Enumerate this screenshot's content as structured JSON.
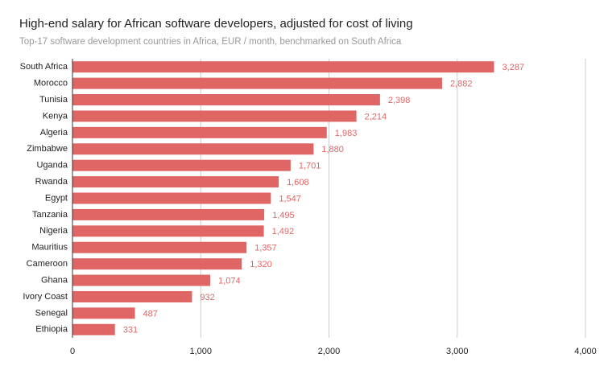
{
  "chart_data": {
    "type": "bar",
    "orientation": "horizontal",
    "title": "High-end salary for African software developers, adjusted for cost of living",
    "subtitle": "Top-17 software development countries in Africa, EUR / month, benchmarked on South Africa",
    "categories": [
      "South Africa",
      "Morocco",
      "Tunisia",
      "Kenya",
      "Algeria",
      "Zimbabwe",
      "Uganda",
      "Rwanda",
      "Egypt",
      "Tanzania",
      "Nigeria",
      "Mauritius",
      "Cameroon",
      "Ghana",
      "Ivory Coast",
      "Senegal",
      "Ethiopia"
    ],
    "values": [
      3287,
      2882,
      2398,
      2214,
      1983,
      1880,
      1701,
      1608,
      1547,
      1495,
      1492,
      1357,
      1320,
      1074,
      932,
      487,
      331
    ],
    "value_labels": [
      "3,287",
      "2,882",
      "2,398",
      "2,214",
      "1,983",
      "1,880",
      "1,701",
      "1,608",
      "1,547",
      "1,495",
      "1,492",
      "1,357",
      "1,320",
      "1,074",
      "932",
      "487",
      "331"
    ],
    "color": "#e06666",
    "xlim": [
      0,
      4000
    ],
    "xticks": [
      0,
      {
        "value": 1000,
        "label": "1,000"
      },
      {
        "value": 2000,
        "label": "2,000"
      },
      {
        "value": 3000,
        "label": "3,000"
      },
      {
        "value": 4000,
        "label": "4,000"
      }
    ],
    "grid": true
  }
}
